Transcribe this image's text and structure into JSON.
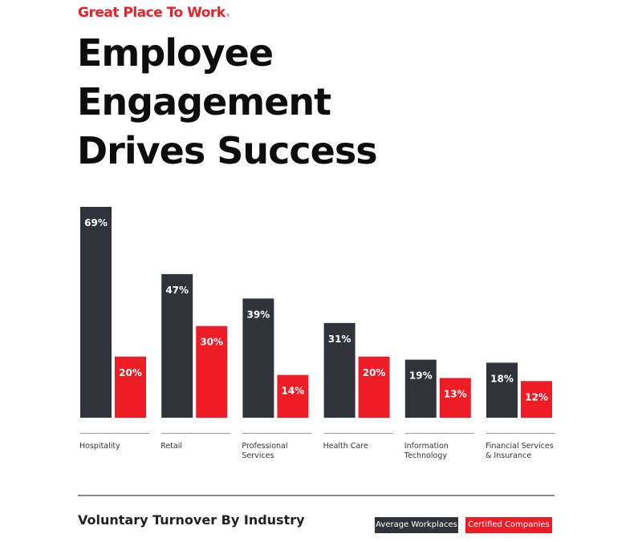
{
  "brand": {
    "name": "Great Place To Work",
    "registered_mark": "®",
    "color": "#e8202a"
  },
  "headline": {
    "line1": "Employee",
    "line2": "Engagement",
    "line3": "Drives Success"
  },
  "legend": {
    "average": "Average Workplaces",
    "certified": "Certified Companies"
  },
  "chart_data": {
    "type": "bar",
    "title": "Voluntary Turnover By Industry",
    "categories": [
      [
        "Hospitality"
      ],
      [
        "Retail"
      ],
      [
        "Professional",
        "Services"
      ],
      [
        "Health Care"
      ],
      [
        "Information",
        "Technology"
      ],
      [
        "Financial Services",
        "& Insurance"
      ]
    ],
    "series": [
      {
        "name": "Average Workplaces",
        "color": "#30333a",
        "values": [
          69,
          47,
          39,
          31,
          19,
          18
        ],
        "labels": [
          "69%",
          "47%",
          "39%",
          "31%",
          "19%",
          "18%"
        ]
      },
      {
        "name": "Certified Companies",
        "color": "#ee1c25",
        "values": [
          20,
          30,
          14,
          20,
          13,
          12
        ],
        "labels": [
          "20%",
          "30%",
          "14%",
          "20%",
          "13%",
          "12%"
        ]
      }
    ],
    "ylim": [
      0,
      69
    ],
    "grid": false,
    "legend": "bottom-right"
  }
}
